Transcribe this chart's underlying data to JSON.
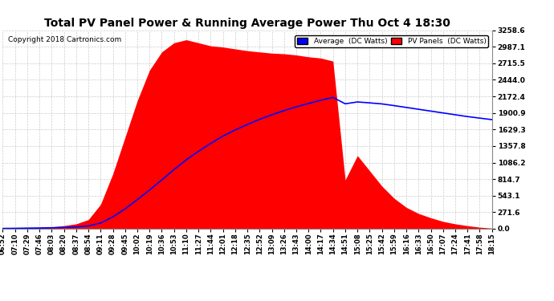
{
  "title": "Total PV Panel Power & Running Average Power Thu Oct 4 18:30",
  "copyright": "Copyright 2018 Cartronics.com",
  "legend_avg": "Average  (DC Watts)",
  "legend_pv": "PV Panels  (DC Watts)",
  "ymax": 3258.6,
  "yticks": [
    0.0,
    271.6,
    543.1,
    814.7,
    1086.2,
    1357.8,
    1629.3,
    1900.9,
    2172.4,
    2444.0,
    2715.5,
    2987.1,
    3258.6
  ],
  "background_color": "#ffffff",
  "plot_bg_color": "#ffffff",
  "grid_color": "#cccccc",
  "fill_color": "#ff0000",
  "avg_color": "#0000ff",
  "xtick_labels": [
    "06:52",
    "07:10",
    "07:29",
    "07:46",
    "08:03",
    "08:20",
    "08:37",
    "08:54",
    "09:11",
    "09:28",
    "09:45",
    "10:02",
    "10:19",
    "10:36",
    "10:53",
    "11:10",
    "11:27",
    "11:44",
    "12:01",
    "12:18",
    "12:35",
    "12:52",
    "13:09",
    "13:26",
    "13:43",
    "14:00",
    "14:17",
    "14:34",
    "14:51",
    "15:08",
    "15:25",
    "15:42",
    "15:59",
    "16:16",
    "16:33",
    "16:50",
    "17:07",
    "17:24",
    "17:41",
    "17:58",
    "18:15"
  ],
  "pv_values": [
    5,
    10,
    15,
    20,
    30,
    50,
    80,
    150,
    400,
    900,
    1500,
    2100,
    2600,
    2900,
    3050,
    3100,
    3050,
    3000,
    2980,
    2950,
    2920,
    2900,
    2880,
    2870,
    2850,
    2820,
    2800,
    2750,
    800,
    1200,
    950,
    700,
    500,
    350,
    250,
    180,
    120,
    80,
    50,
    25,
    10
  ],
  "avg_values": [
    5,
    7,
    10,
    13,
    17,
    22,
    30,
    46,
    94,
    196,
    325,
    477,
    635,
    800,
    970,
    1130,
    1270,
    1400,
    1520,
    1620,
    1710,
    1795,
    1870,
    1938,
    2000,
    2055,
    2108,
    2155,
    2050,
    2080,
    2065,
    2048,
    2020,
    1990,
    1960,
    1930,
    1900,
    1870,
    1840,
    1815,
    1790
  ]
}
